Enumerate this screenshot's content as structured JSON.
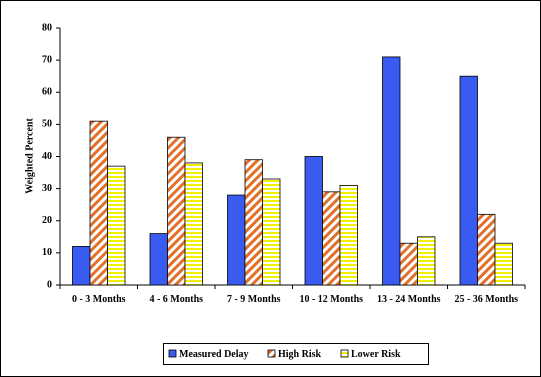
{
  "chart_data": {
    "type": "bar",
    "y_label": "Weighted Percent",
    "categories": [
      "0 - 3 Months",
      "4 - 6 Months",
      "7 - 9 Months",
      "10 - 12 Months",
      "13 - 24 Months",
      "25 - 36 Months"
    ],
    "series": [
      {
        "name": "Measured Delay",
        "color": "#3a5bf0",
        "pattern": "solid",
        "values": [
          12,
          16,
          28,
          40,
          71,
          65
        ]
      },
      {
        "name": "High Risk",
        "color": "#e0702a",
        "pattern": "diagonal",
        "values": [
          51,
          46,
          39,
          29,
          13,
          22
        ]
      },
      {
        "name": "Lower Risk",
        "color": "#f0f000",
        "pattern": "horizontal",
        "values": [
          37,
          38,
          33,
          31,
          15,
          13
        ]
      }
    ],
    "ylim": [
      0,
      80
    ],
    "yticks": [
      0,
      10,
      20,
      30,
      40,
      50,
      60,
      70,
      80
    ],
    "legend": "bottom"
  }
}
